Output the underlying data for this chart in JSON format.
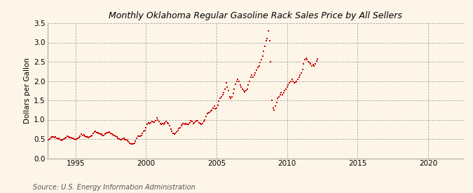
{
  "title": "Monthly Oklahoma Regular Gasoline Rack Sales Price by All Sellers",
  "ylabel": "Dollars per Gallon",
  "source": "Source: U.S. Energy Information Administration",
  "background_color": "#fdf6e8",
  "dot_color": "#cc0000",
  "dot_size": 3,
  "xlim": [
    1993.0,
    2022.5
  ],
  "ylim": [
    0.0,
    3.5
  ],
  "yticks": [
    0.0,
    0.5,
    1.0,
    1.5,
    2.0,
    2.5,
    3.0,
    3.5
  ],
  "xticks": [
    1995,
    2000,
    2005,
    2010,
    2015,
    2020
  ],
  "data": [
    [
      1993.0,
      0.47
    ],
    [
      1993.083,
      0.48
    ],
    [
      1993.167,
      0.5
    ],
    [
      1993.25,
      0.53
    ],
    [
      1993.333,
      0.55
    ],
    [
      1993.417,
      0.56
    ],
    [
      1993.5,
      0.54
    ],
    [
      1993.583,
      0.55
    ],
    [
      1993.667,
      0.52
    ],
    [
      1993.75,
      0.5
    ],
    [
      1993.833,
      0.51
    ],
    [
      1993.917,
      0.48
    ],
    [
      1994.0,
      0.47
    ],
    [
      1994.083,
      0.48
    ],
    [
      1994.167,
      0.5
    ],
    [
      1994.25,
      0.52
    ],
    [
      1994.333,
      0.54
    ],
    [
      1994.417,
      0.57
    ],
    [
      1994.5,
      0.55
    ],
    [
      1994.583,
      0.54
    ],
    [
      1994.667,
      0.53
    ],
    [
      1994.75,
      0.51
    ],
    [
      1994.833,
      0.52
    ],
    [
      1994.917,
      0.5
    ],
    [
      1995.0,
      0.49
    ],
    [
      1995.083,
      0.5
    ],
    [
      1995.167,
      0.52
    ],
    [
      1995.25,
      0.54
    ],
    [
      1995.333,
      0.58
    ],
    [
      1995.417,
      0.62
    ],
    [
      1995.5,
      0.6
    ],
    [
      1995.583,
      0.61
    ],
    [
      1995.667,
      0.58
    ],
    [
      1995.75,
      0.56
    ],
    [
      1995.833,
      0.55
    ],
    [
      1995.917,
      0.54
    ],
    [
      1996.0,
      0.55
    ],
    [
      1996.083,
      0.57
    ],
    [
      1996.167,
      0.6
    ],
    [
      1996.25,
      0.65
    ],
    [
      1996.333,
      0.68
    ],
    [
      1996.417,
      0.7
    ],
    [
      1996.5,
      0.67
    ],
    [
      1996.583,
      0.66
    ],
    [
      1996.667,
      0.64
    ],
    [
      1996.75,
      0.62
    ],
    [
      1996.833,
      0.63
    ],
    [
      1996.917,
      0.6
    ],
    [
      1997.0,
      0.6
    ],
    [
      1997.083,
      0.63
    ],
    [
      1997.167,
      0.65
    ],
    [
      1997.25,
      0.66
    ],
    [
      1997.333,
      0.67
    ],
    [
      1997.417,
      0.68
    ],
    [
      1997.5,
      0.65
    ],
    [
      1997.583,
      0.63
    ],
    [
      1997.667,
      0.61
    ],
    [
      1997.75,
      0.59
    ],
    [
      1997.833,
      0.57
    ],
    [
      1997.917,
      0.55
    ],
    [
      1998.0,
      0.52
    ],
    [
      1998.083,
      0.5
    ],
    [
      1998.167,
      0.49
    ],
    [
      1998.25,
      0.48
    ],
    [
      1998.333,
      0.5
    ],
    [
      1998.417,
      0.51
    ],
    [
      1998.5,
      0.49
    ],
    [
      1998.583,
      0.48
    ],
    [
      1998.667,
      0.46
    ],
    [
      1998.75,
      0.43
    ],
    [
      1998.833,
      0.4
    ],
    [
      1998.917,
      0.38
    ],
    [
      1999.0,
      0.37
    ],
    [
      1999.083,
      0.38
    ],
    [
      1999.167,
      0.4
    ],
    [
      1999.25,
      0.45
    ],
    [
      1999.333,
      0.52
    ],
    [
      1999.417,
      0.58
    ],
    [
      1999.5,
      0.57
    ],
    [
      1999.583,
      0.58
    ],
    [
      1999.667,
      0.6
    ],
    [
      1999.75,
      0.65
    ],
    [
      1999.833,
      0.7
    ],
    [
      1999.917,
      0.72
    ],
    [
      2000.0,
      0.8
    ],
    [
      2000.083,
      0.88
    ],
    [
      2000.167,
      0.92
    ],
    [
      2000.25,
      0.9
    ],
    [
      2000.333,
      0.92
    ],
    [
      2000.417,
      0.95
    ],
    [
      2000.5,
      0.93
    ],
    [
      2000.583,
      0.94
    ],
    [
      2000.667,
      0.98
    ],
    [
      2000.75,
      1.05
    ],
    [
      2000.833,
      1.0
    ],
    [
      2000.917,
      0.95
    ],
    [
      2001.0,
      0.9
    ],
    [
      2001.083,
      0.88
    ],
    [
      2001.167,
      0.9
    ],
    [
      2001.25,
      0.88
    ],
    [
      2001.333,
      0.92
    ],
    [
      2001.417,
      0.95
    ],
    [
      2001.5,
      0.92
    ],
    [
      2001.583,
      0.9
    ],
    [
      2001.667,
      0.85
    ],
    [
      2001.75,
      0.75
    ],
    [
      2001.833,
      0.7
    ],
    [
      2001.917,
      0.65
    ],
    [
      2002.0,
      0.62
    ],
    [
      2002.083,
      0.65
    ],
    [
      2002.167,
      0.68
    ],
    [
      2002.25,
      0.72
    ],
    [
      2002.333,
      0.78
    ],
    [
      2002.417,
      0.8
    ],
    [
      2002.5,
      0.85
    ],
    [
      2002.583,
      0.88
    ],
    [
      2002.667,
      0.9
    ],
    [
      2002.75,
      0.88
    ],
    [
      2002.833,
      0.9
    ],
    [
      2002.917,
      0.88
    ],
    [
      2003.0,
      0.88
    ],
    [
      2003.083,
      0.92
    ],
    [
      2003.167,
      0.98
    ],
    [
      2003.25,
      0.95
    ],
    [
      2003.333,
      0.9
    ],
    [
      2003.417,
      0.92
    ],
    [
      2003.5,
      0.95
    ],
    [
      2003.583,
      0.98
    ],
    [
      2003.667,
      0.97
    ],
    [
      2003.75,
      0.92
    ],
    [
      2003.833,
      0.9
    ],
    [
      2003.917,
      0.88
    ],
    [
      2004.0,
      0.9
    ],
    [
      2004.083,
      0.95
    ],
    [
      2004.167,
      1.0
    ],
    [
      2004.25,
      1.08
    ],
    [
      2004.333,
      1.15
    ],
    [
      2004.417,
      1.18
    ],
    [
      2004.5,
      1.2
    ],
    [
      2004.583,
      1.22
    ],
    [
      2004.667,
      1.25
    ],
    [
      2004.75,
      1.3
    ],
    [
      2004.833,
      1.35
    ],
    [
      2004.917,
      1.28
    ],
    [
      2005.0,
      1.3
    ],
    [
      2005.083,
      1.38
    ],
    [
      2005.167,
      1.48
    ],
    [
      2005.25,
      1.55
    ],
    [
      2005.333,
      1.6
    ],
    [
      2005.417,
      1.65
    ],
    [
      2005.5,
      1.7
    ],
    [
      2005.583,
      1.8
    ],
    [
      2005.667,
      1.95
    ],
    [
      2005.75,
      1.85
    ],
    [
      2005.833,
      1.75
    ],
    [
      2005.917,
      1.6
    ],
    [
      2006.0,
      1.55
    ],
    [
      2006.083,
      1.6
    ],
    [
      2006.167,
      1.68
    ],
    [
      2006.25,
      1.8
    ],
    [
      2006.333,
      1.92
    ],
    [
      2006.417,
      2.0
    ],
    [
      2006.5,
      2.05
    ],
    [
      2006.583,
      2.0
    ],
    [
      2006.667,
      1.9
    ],
    [
      2006.75,
      1.85
    ],
    [
      2006.833,
      1.8
    ],
    [
      2006.917,
      1.75
    ],
    [
      2007.0,
      1.72
    ],
    [
      2007.083,
      1.75
    ],
    [
      2007.167,
      1.8
    ],
    [
      2007.25,
      1.9
    ],
    [
      2007.333,
      2.0
    ],
    [
      2007.417,
      2.1
    ],
    [
      2007.5,
      2.15
    ],
    [
      2007.583,
      2.1
    ],
    [
      2007.667,
      2.15
    ],
    [
      2007.75,
      2.2
    ],
    [
      2007.833,
      2.28
    ],
    [
      2007.917,
      2.35
    ],
    [
      2008.0,
      2.4
    ],
    [
      2008.083,
      2.48
    ],
    [
      2008.167,
      2.55
    ],
    [
      2008.25,
      2.65
    ],
    [
      2008.333,
      2.78
    ],
    [
      2008.417,
      2.9
    ],
    [
      2008.5,
      3.05
    ],
    [
      2008.583,
      3.1
    ],
    [
      2008.667,
      3.3
    ],
    [
      2008.75,
      3.05
    ],
    [
      2008.833,
      2.5
    ],
    [
      2008.917,
      1.5
    ],
    [
      2009.0,
      1.3
    ],
    [
      2009.083,
      1.25
    ],
    [
      2009.167,
      1.35
    ],
    [
      2009.25,
      1.45
    ],
    [
      2009.333,
      1.55
    ],
    [
      2009.417,
      1.6
    ],
    [
      2009.5,
      1.65
    ],
    [
      2009.583,
      1.7
    ],
    [
      2009.667,
      1.65
    ],
    [
      2009.75,
      1.7
    ],
    [
      2009.833,
      1.75
    ],
    [
      2009.917,
      1.8
    ],
    [
      2010.0,
      1.85
    ],
    [
      2010.083,
      1.9
    ],
    [
      2010.167,
      1.95
    ],
    [
      2010.25,
      2.0
    ],
    [
      2010.333,
      2.05
    ],
    [
      2010.417,
      2.0
    ],
    [
      2010.5,
      1.95
    ],
    [
      2010.583,
      1.97
    ],
    [
      2010.667,
      2.0
    ],
    [
      2010.75,
      2.05
    ],
    [
      2010.833,
      2.1
    ],
    [
      2010.917,
      2.15
    ],
    [
      2011.0,
      2.2
    ],
    [
      2011.083,
      2.3
    ],
    [
      2011.167,
      2.45
    ],
    [
      2011.25,
      2.55
    ],
    [
      2011.333,
      2.6
    ],
    [
      2011.417,
      2.55
    ],
    [
      2011.5,
      2.5
    ],
    [
      2011.583,
      2.48
    ],
    [
      2011.667,
      2.45
    ],
    [
      2011.75,
      2.4
    ],
    [
      2011.833,
      2.42
    ],
    [
      2011.917,
      2.4
    ],
    [
      2012.0,
      2.45
    ],
    [
      2012.083,
      2.52
    ],
    [
      2012.167,
      2.58
    ]
  ]
}
